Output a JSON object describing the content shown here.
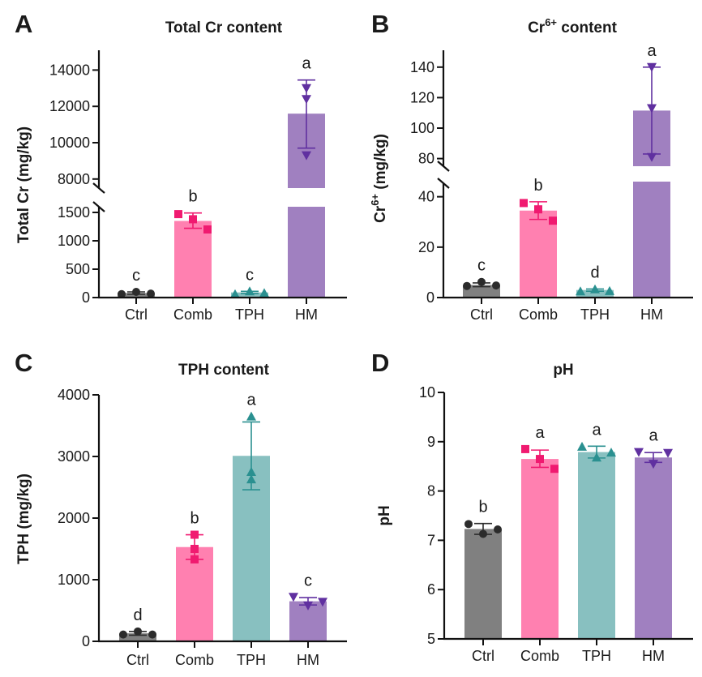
{
  "figure": {
    "panels": [
      "A",
      "B",
      "C",
      "D"
    ]
  },
  "colors": {
    "Ctrl": {
      "bar": "#808080",
      "marker": "#2b2b2b"
    },
    "Comb": {
      "bar": "#ff80b0",
      "marker": "#f01a70"
    },
    "TPH": {
      "bar": "#88c0c0",
      "marker": "#2a9090"
    },
    "HM": {
      "bar": "#a080c0",
      "marker": "#6030a0"
    }
  },
  "chart_data": [
    {
      "id": "A",
      "type": "bar",
      "panel_letter": "A",
      "title": "Total Cr content",
      "ylabel": "Total Cr (mg/kg)",
      "xlabel": "",
      "categories": [
        "Ctrl",
        "Comb",
        "TPH",
        "HM"
      ],
      "values": [
        80,
        1350,
        90,
        11600
      ],
      "error_low": [
        60,
        1220,
        70,
        9700
      ],
      "error_high": [
        100,
        1490,
        110,
        13450
      ],
      "points": [
        [
          60,
          100,
          70
        ],
        [
          1470,
          1380,
          1200
        ],
        [
          60,
          110,
          80
        ],
        [
          13000,
          12400,
          9300
        ]
      ],
      "markers": [
        "circle",
        "square",
        "triangle-up",
        "triangle-down"
      ],
      "significance": [
        "c",
        "b",
        "c",
        "a"
      ],
      "axis_break": true,
      "ylim_lower": [
        0,
        1600
      ],
      "ylim_upper": [
        7500,
        15000
      ],
      "yticks_lower": [
        0,
        500,
        1000,
        1500
      ],
      "yticks_upper": [
        8000,
        10000,
        12000,
        14000
      ],
      "ytick_labels_lower": [
        "0",
        "500",
        "1000",
        "1500"
      ],
      "ytick_labels_upper": [
        "8000",
        "10000",
        "12000",
        "14000"
      ],
      "grid": false,
      "legend": "none"
    },
    {
      "id": "B",
      "type": "bar",
      "panel_letter": "B",
      "title": "Cr",
      "title_sup": "6+",
      "title_rest": " content",
      "ylabel": "Cr",
      "ylabel_sup": "6+",
      "ylabel_rest": " (mg/kg)",
      "xlabel": "",
      "categories": [
        "Ctrl",
        "Comb",
        "TPH",
        "HM"
      ],
      "values": [
        5,
        34.5,
        3,
        111.5
      ],
      "error_low": [
        4.3,
        31,
        2.5,
        83
      ],
      "error_high": [
        5.8,
        38,
        3.4,
        140
      ],
      "points": [
        [
          4.6,
          6.2,
          4.8
        ],
        [
          37.5,
          35,
          30.5
        ],
        [
          2.5,
          3.3,
          2.6
        ],
        [
          140,
          113,
          81
        ]
      ],
      "markers": [
        "circle",
        "square",
        "triangle-up",
        "triangle-down"
      ],
      "significance": [
        "c",
        "b",
        "d",
        "a"
      ],
      "axis_break": true,
      "ylim_lower": [
        0,
        46
      ],
      "ylim_upper": [
        75,
        150
      ],
      "yticks_lower": [
        0,
        20,
        40
      ],
      "yticks_upper": [
        80,
        100,
        120,
        140
      ],
      "ytick_labels_lower": [
        "0",
        "20",
        "40"
      ],
      "ytick_labels_upper": [
        "80",
        "100",
        "120",
        "140"
      ],
      "grid": false,
      "legend": "none"
    },
    {
      "id": "C",
      "type": "bar",
      "panel_letter": "C",
      "title": "TPH content",
      "ylabel": "TPH (mg/kg)",
      "xlabel": "",
      "categories": [
        "Ctrl",
        "Comb",
        "TPH",
        "HM"
      ],
      "values": [
        130,
        1530,
        3010,
        650
      ],
      "error_low": [
        100,
        1330,
        2460,
        590
      ],
      "error_high": [
        160,
        1730,
        3560,
        710
      ],
      "points": [
        [
          110,
          160,
          110
        ],
        [
          1730,
          1500,
          1330
        ],
        [
          3650,
          2750,
          2630
        ],
        [
          720,
          580,
          640
        ]
      ],
      "markers": [
        "circle",
        "square",
        "triangle-up",
        "triangle-down"
      ],
      "significance": [
        "d",
        "b",
        "a",
        "c"
      ],
      "axis_break": false,
      "ylim": [
        0,
        4000
      ],
      "yticks": [
        0,
        1000,
        2000,
        3000,
        4000
      ],
      "ytick_labels": [
        "0",
        "1000",
        "2000",
        "3000",
        "4000"
      ],
      "grid": false,
      "legend": "none"
    },
    {
      "id": "D",
      "type": "bar",
      "panel_letter": "D",
      "title": "pH",
      "ylabel": "pH",
      "xlabel": "",
      "categories": [
        "Ctrl",
        "Comb",
        "TPH",
        "HM"
      ],
      "values": [
        7.23,
        8.65,
        8.79,
        8.68
      ],
      "error_low": [
        7.12,
        8.48,
        8.67,
        8.58
      ],
      "error_high": [
        7.34,
        8.83,
        8.91,
        8.78
      ],
      "points": [
        [
          7.33,
          7.13,
          7.22
        ],
        [
          8.85,
          8.65,
          8.45
        ],
        [
          8.9,
          8.68,
          8.78
        ],
        [
          8.79,
          8.55,
          8.77
        ]
      ],
      "markers": [
        "circle",
        "square",
        "triangle-up",
        "triangle-down"
      ],
      "significance": [
        "b",
        "a",
        "a",
        "a"
      ],
      "axis_break": false,
      "ylim": [
        5,
        10
      ],
      "yticks": [
        5,
        6,
        7,
        8,
        9,
        10
      ],
      "ytick_labels": [
        "5",
        "6",
        "7",
        "8",
        "9",
        "10"
      ],
      "grid": false,
      "legend": "none"
    }
  ]
}
